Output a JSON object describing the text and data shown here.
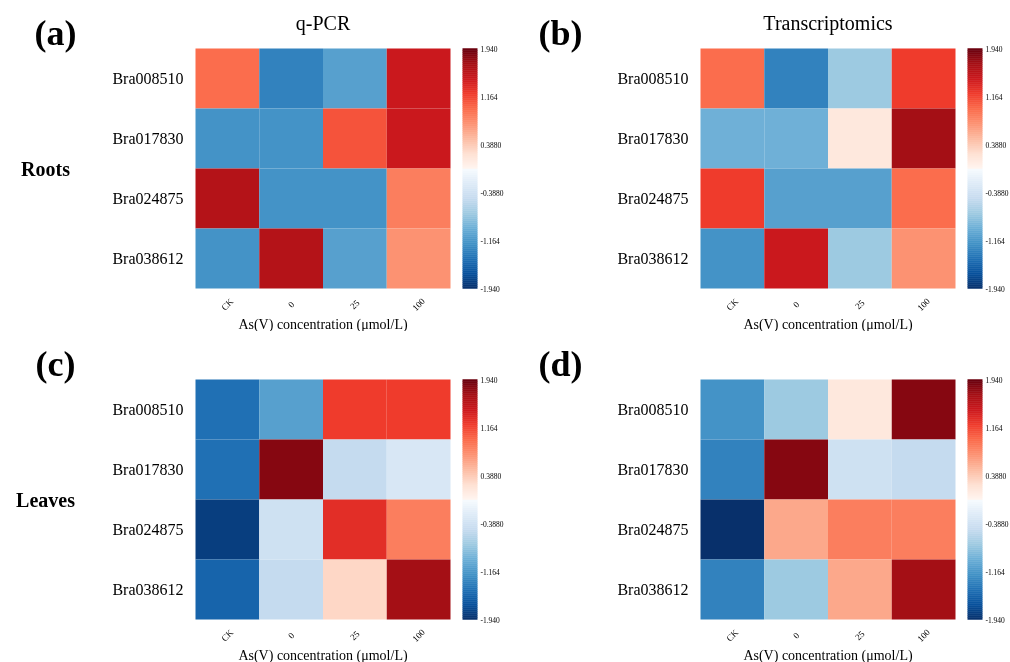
{
  "chart_data": [
    {
      "type": "heatmap",
      "title": "q-PCR",
      "ylabel": "Roots",
      "xlabel": "As(V) concentration (μmol/L)",
      "annotations": [
        "(a)"
      ],
      "categories": [
        "CK",
        "0",
        "25",
        "100"
      ],
      "y_categories": [
        "Bra008510",
        "Bra017830",
        "Bra024875",
        "Bra038612"
      ],
      "cells": [
        [
          0.95,
          -1.33,
          -1.09,
          1.46
        ],
        [
          -1.2,
          -1.2,
          1.09,
          1.46
        ],
        [
          1.6,
          -1.2,
          -1.2,
          0.85
        ],
        [
          -1.2,
          1.6,
          -1.09,
          0.73
        ]
      ],
      "clim": [
        -1.94,
        1.94
      ],
      "cticks": [
        {
          "value": 1.94,
          "label": "1.940"
        },
        {
          "value": 1.164,
          "label": "1.164"
        },
        {
          "value": 0.388,
          "label": "0.3880"
        },
        {
          "value": -0.388,
          "label": "-0.3880"
        },
        {
          "value": -1.164,
          "label": "-1.164"
        },
        {
          "value": -1.94,
          "label": "-1.940"
        }
      ]
    },
    {
      "type": "heatmap",
      "title": "Transcriptomics",
      "xlabel": "As(V) concentration (μmol/L)",
      "annotations": [
        "(b)"
      ],
      "categories": [
        "CK",
        "0",
        "25",
        "100"
      ],
      "y_categories": [
        "Bra008510",
        "Bra017830",
        "Bra024875",
        "Bra038612"
      ],
      "cells": [
        [
          0.95,
          -1.33,
          -0.73,
          1.21
        ],
        [
          -0.95,
          -0.95,
          0.15,
          1.7
        ],
        [
          1.21,
          -1.09,
          -1.09,
          0.95
        ],
        [
          -1.2,
          1.46,
          -0.73,
          0.73
        ]
      ],
      "clim": [
        -1.94,
        1.94
      ],
      "cticks": [
        {
          "value": 1.94,
          "label": "1.940"
        },
        {
          "value": 1.164,
          "label": "1.164"
        },
        {
          "value": 0.388,
          "label": "0.3880"
        },
        {
          "value": -0.388,
          "label": "-0.3880"
        },
        {
          "value": -1.164,
          "label": "-1.164"
        },
        {
          "value": -1.94,
          "label": "-1.940"
        }
      ]
    },
    {
      "type": "heatmap",
      "ylabel": "Leaves",
      "xlabel": "As(V) concentration (μmol/L)",
      "annotations": [
        "(c)"
      ],
      "categories": [
        "CK",
        "0",
        "25",
        "100"
      ],
      "y_categories": [
        "Bra008510",
        "Bra017830",
        "Bra024875",
        "Bra038612"
      ],
      "cells": [
        [
          -1.46,
          -1.09,
          1.21,
          1.21
        ],
        [
          -1.46,
          1.82,
          -0.49,
          -0.3
        ],
        [
          -1.84,
          -0.4,
          1.3,
          0.85
        ],
        [
          -1.55,
          -0.49,
          0.3,
          1.7
        ]
      ],
      "clim": [
        -1.94,
        1.94
      ],
      "cticks": [
        {
          "value": 1.94,
          "label": "1.940"
        },
        {
          "value": 1.164,
          "label": "1.164"
        },
        {
          "value": 0.388,
          "label": "0.3880"
        },
        {
          "value": -0.388,
          "label": "-0.3880"
        },
        {
          "value": -1.164,
          "label": "-1.164"
        },
        {
          "value": -1.94,
          "label": "-1.940"
        }
      ]
    },
    {
      "type": "heatmap",
      "xlabel": "As(V) concentration (μmol/L)",
      "annotations": [
        "(d)"
      ],
      "categories": [
        "CK",
        "0",
        "25",
        "100"
      ],
      "y_categories": [
        "Bra008510",
        "Bra017830",
        "Bra024875",
        "Bra038612"
      ],
      "cells": [
        [
          -1.2,
          -0.73,
          0.15,
          1.82
        ],
        [
          -1.33,
          1.82,
          -0.4,
          -0.49
        ],
        [
          -1.94,
          0.6,
          0.85,
          0.85
        ],
        [
          -1.33,
          -0.73,
          0.6,
          1.7
        ]
      ],
      "clim": [
        -1.94,
        1.94
      ],
      "cticks": [
        {
          "value": 1.94,
          "label": "1.940"
        },
        {
          "value": 1.164,
          "label": "1.164"
        },
        {
          "value": 0.388,
          "label": "0.3880"
        },
        {
          "value": -0.388,
          "label": "-0.3880"
        },
        {
          "value": -1.164,
          "label": "-1.164"
        },
        {
          "value": -1.94,
          "label": "-1.940"
        }
      ]
    }
  ]
}
